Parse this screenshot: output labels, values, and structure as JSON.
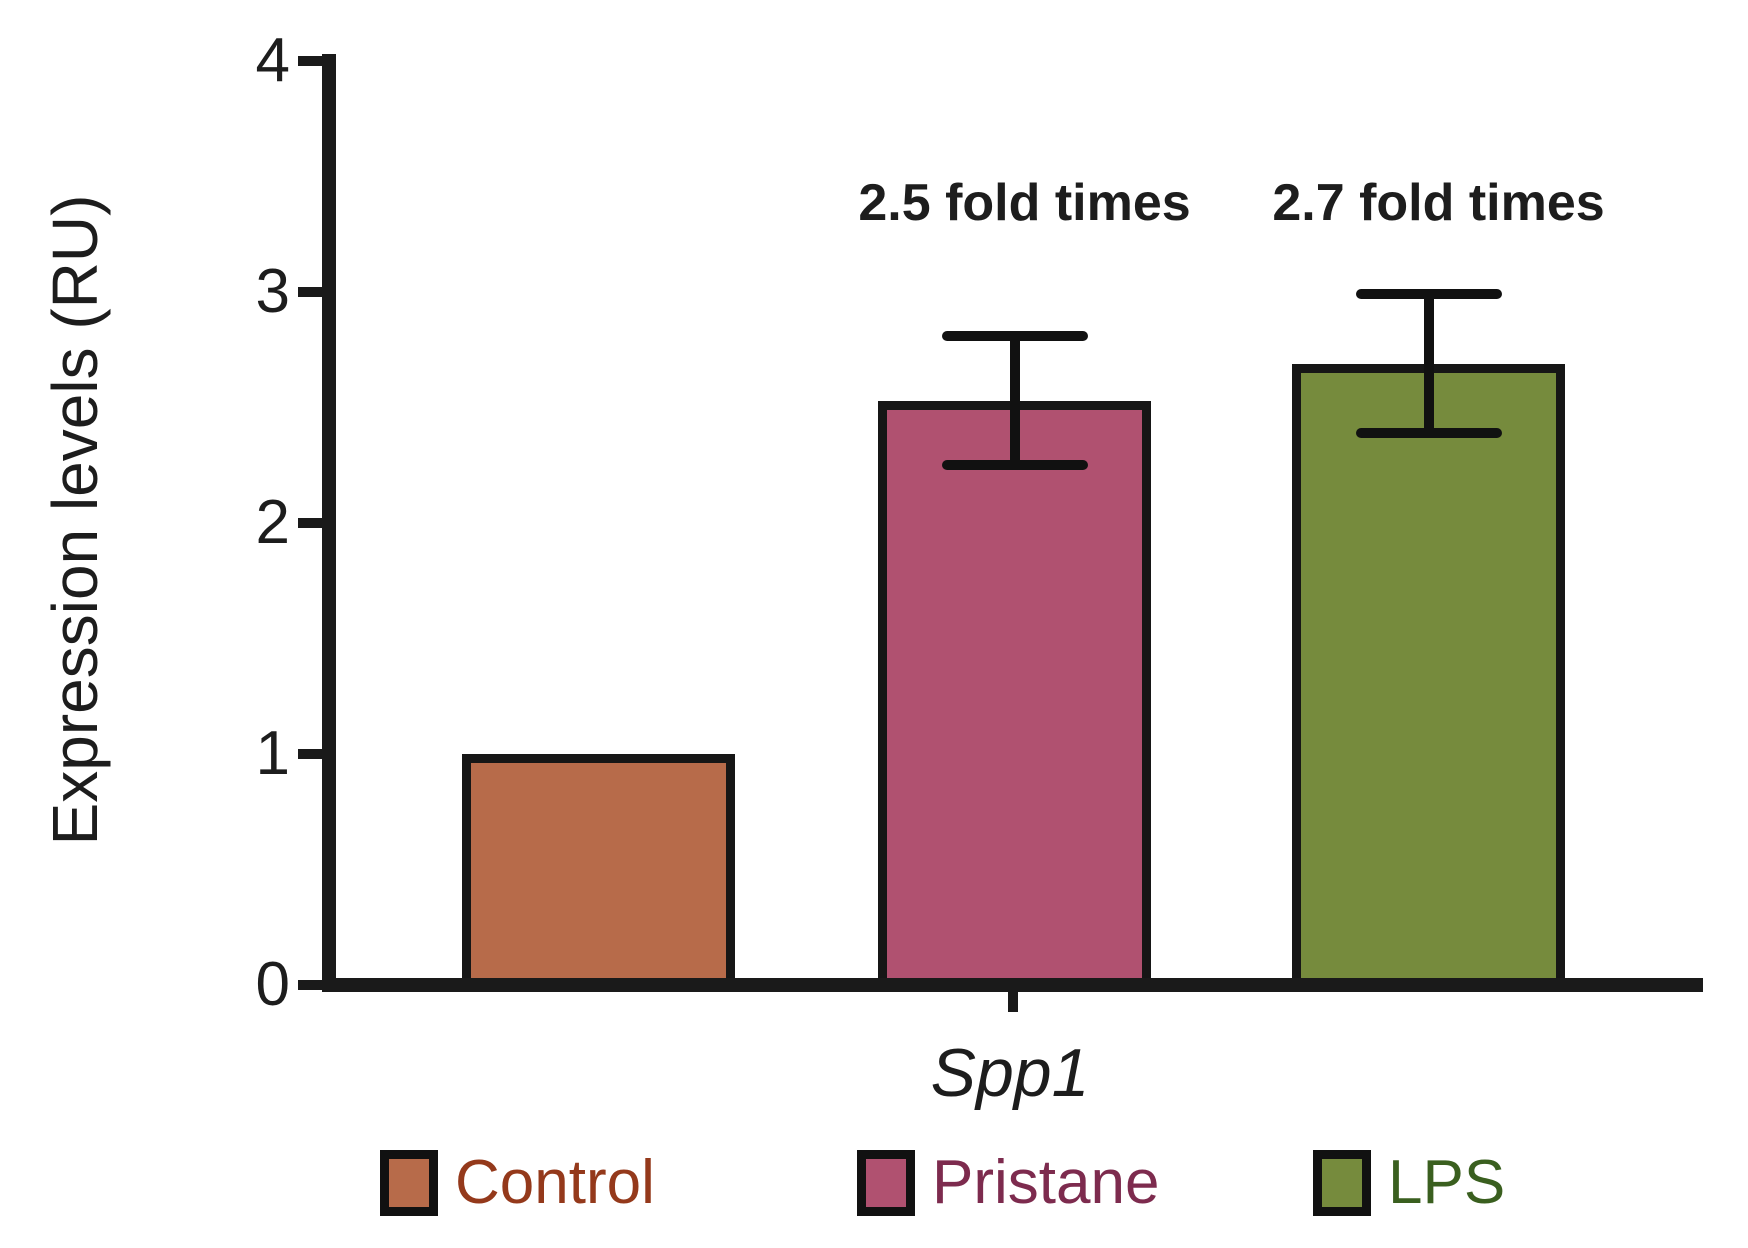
{
  "chart_data": {
    "type": "bar",
    "title": "",
    "xlabel": "",
    "ylabel": "Expression levels (RU)",
    "x_category_label": "Spp1",
    "ylim": [
      0,
      4
    ],
    "yticks": [
      0,
      1,
      2,
      3,
      4
    ],
    "grid": false,
    "legend_position": "bottom",
    "series": [
      {
        "name": "Control",
        "value": 1.0,
        "error": 0,
        "fill": "#B76B4A",
        "label_color": "#94391B",
        "annotation": ""
      },
      {
        "name": "Pristane",
        "value": 2.53,
        "error": 0.28,
        "fill": "#B05170",
        "label_color": "#7D2B4E",
        "annotation": "2.5 fold times"
      },
      {
        "name": "LPS",
        "value": 2.69,
        "error": 0.3,
        "fill": "#768B3D",
        "label_color": "#3A5F1F",
        "annotation": "2.7 fold times"
      }
    ]
  },
  "colors": {
    "axis": "#1A1A1A",
    "error_bar": "#111111",
    "text": "#1D1D1D"
  }
}
